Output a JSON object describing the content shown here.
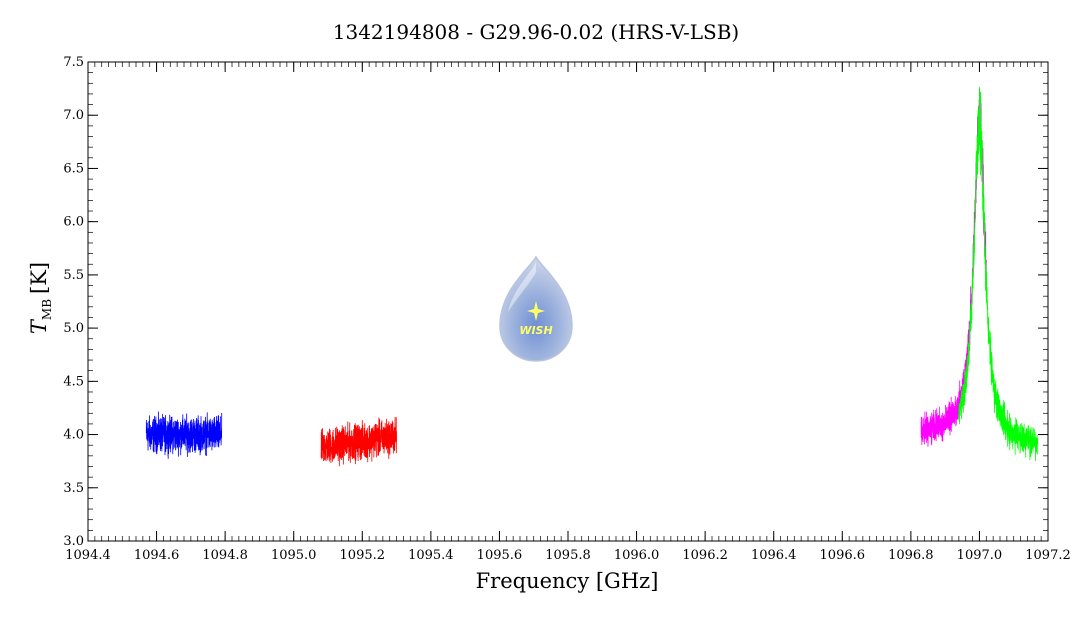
{
  "chart_data": {
    "type": "line",
    "title": "1342194808 - G29.96-0.02 (HRS-V-LSB)",
    "xlabel": "Frequency [GHz]",
    "ylabel": {
      "main": "T",
      "sub": "MB",
      "unit": "[K]"
    },
    "xlim": [
      1094.4,
      1097.2
    ],
    "ylim": [
      3.0,
      7.5
    ],
    "x_ticks": [
      "1094.4",
      "1094.6",
      "1094.8",
      "1095.0",
      "1095.2",
      "1095.4",
      "1095.6",
      "1095.8",
      "1096.0",
      "1096.2",
      "1096.4",
      "1096.6",
      "1096.8",
      "1097.0",
      "1097.2"
    ],
    "y_ticks": [
      "3.0",
      "3.5",
      "4.0",
      "4.5",
      "5.0",
      "5.5",
      "6.0",
      "6.5",
      "7.0",
      "7.5"
    ],
    "grid": false,
    "logo": {
      "text": "WISH",
      "colors": {
        "drop": "#9fb4dd",
        "star": "#ffff66",
        "text": "#ffff66"
      }
    },
    "series": [
      {
        "color": "#0000ff",
        "x_range": [
          1094.57,
          1094.79
        ],
        "baseline": 4.0,
        "noise": 0.14,
        "slope": 0.0
      },
      {
        "color": "#ff0000",
        "x_range": [
          1095.08,
          1095.3
        ],
        "baseline": 3.88,
        "noise": 0.14,
        "slope": 0.95
      },
      {
        "color": "#ff00ff",
        "x_range": [
          1096.83,
          1097.02
        ],
        "baseline": 4.0,
        "noise": 0.12,
        "slope": 0.0,
        "peak": {
          "center": 1097.0,
          "amplitude": 3.0,
          "width": 0.02
        }
      },
      {
        "color": "#00ff00",
        "x_range": [
          1096.94,
          1097.17
        ],
        "baseline": 3.9,
        "noise": 0.13,
        "slope": 0.0,
        "peak": {
          "center": 1097.0,
          "amplitude": 3.0,
          "width": 0.02
        }
      }
    ]
  }
}
